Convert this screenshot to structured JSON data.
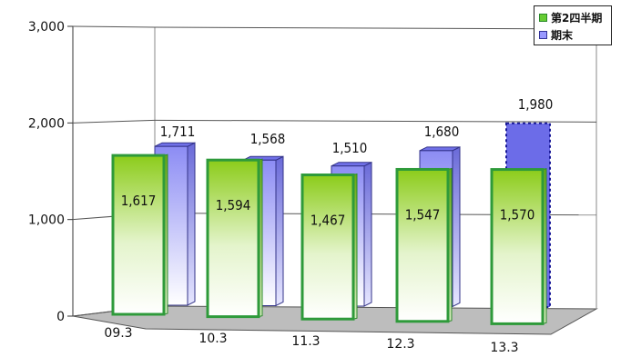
{
  "chart_data": {
    "type": "bar",
    "categories": [
      "09.3",
      "10.3",
      "11.3",
      "12.3",
      "13.3"
    ],
    "series": [
      {
        "name": "第2四半期",
        "values": [
          1617,
          1594,
          1467,
          1547,
          1570
        ],
        "color": "#5bbf2a"
      },
      {
        "name": "期末",
        "values": [
          1711,
          1568,
          1510,
          1680,
          1980
        ],
        "color": "#8080ff",
        "last_forecast": true
      }
    ],
    "ylim": [
      0,
      3000
    ],
    "yticks": [
      "0",
      "1,000",
      "2,000",
      "3,000"
    ],
    "data_labels": [
      [
        "1,617",
        "1,594",
        "1,467",
        "1,547",
        "1,570"
      ],
      [
        "1,711",
        "1,568",
        "1,510",
        "1,680",
        "1,980"
      ]
    ],
    "legend_position": "top-right",
    "grid": true,
    "style": "3d"
  }
}
